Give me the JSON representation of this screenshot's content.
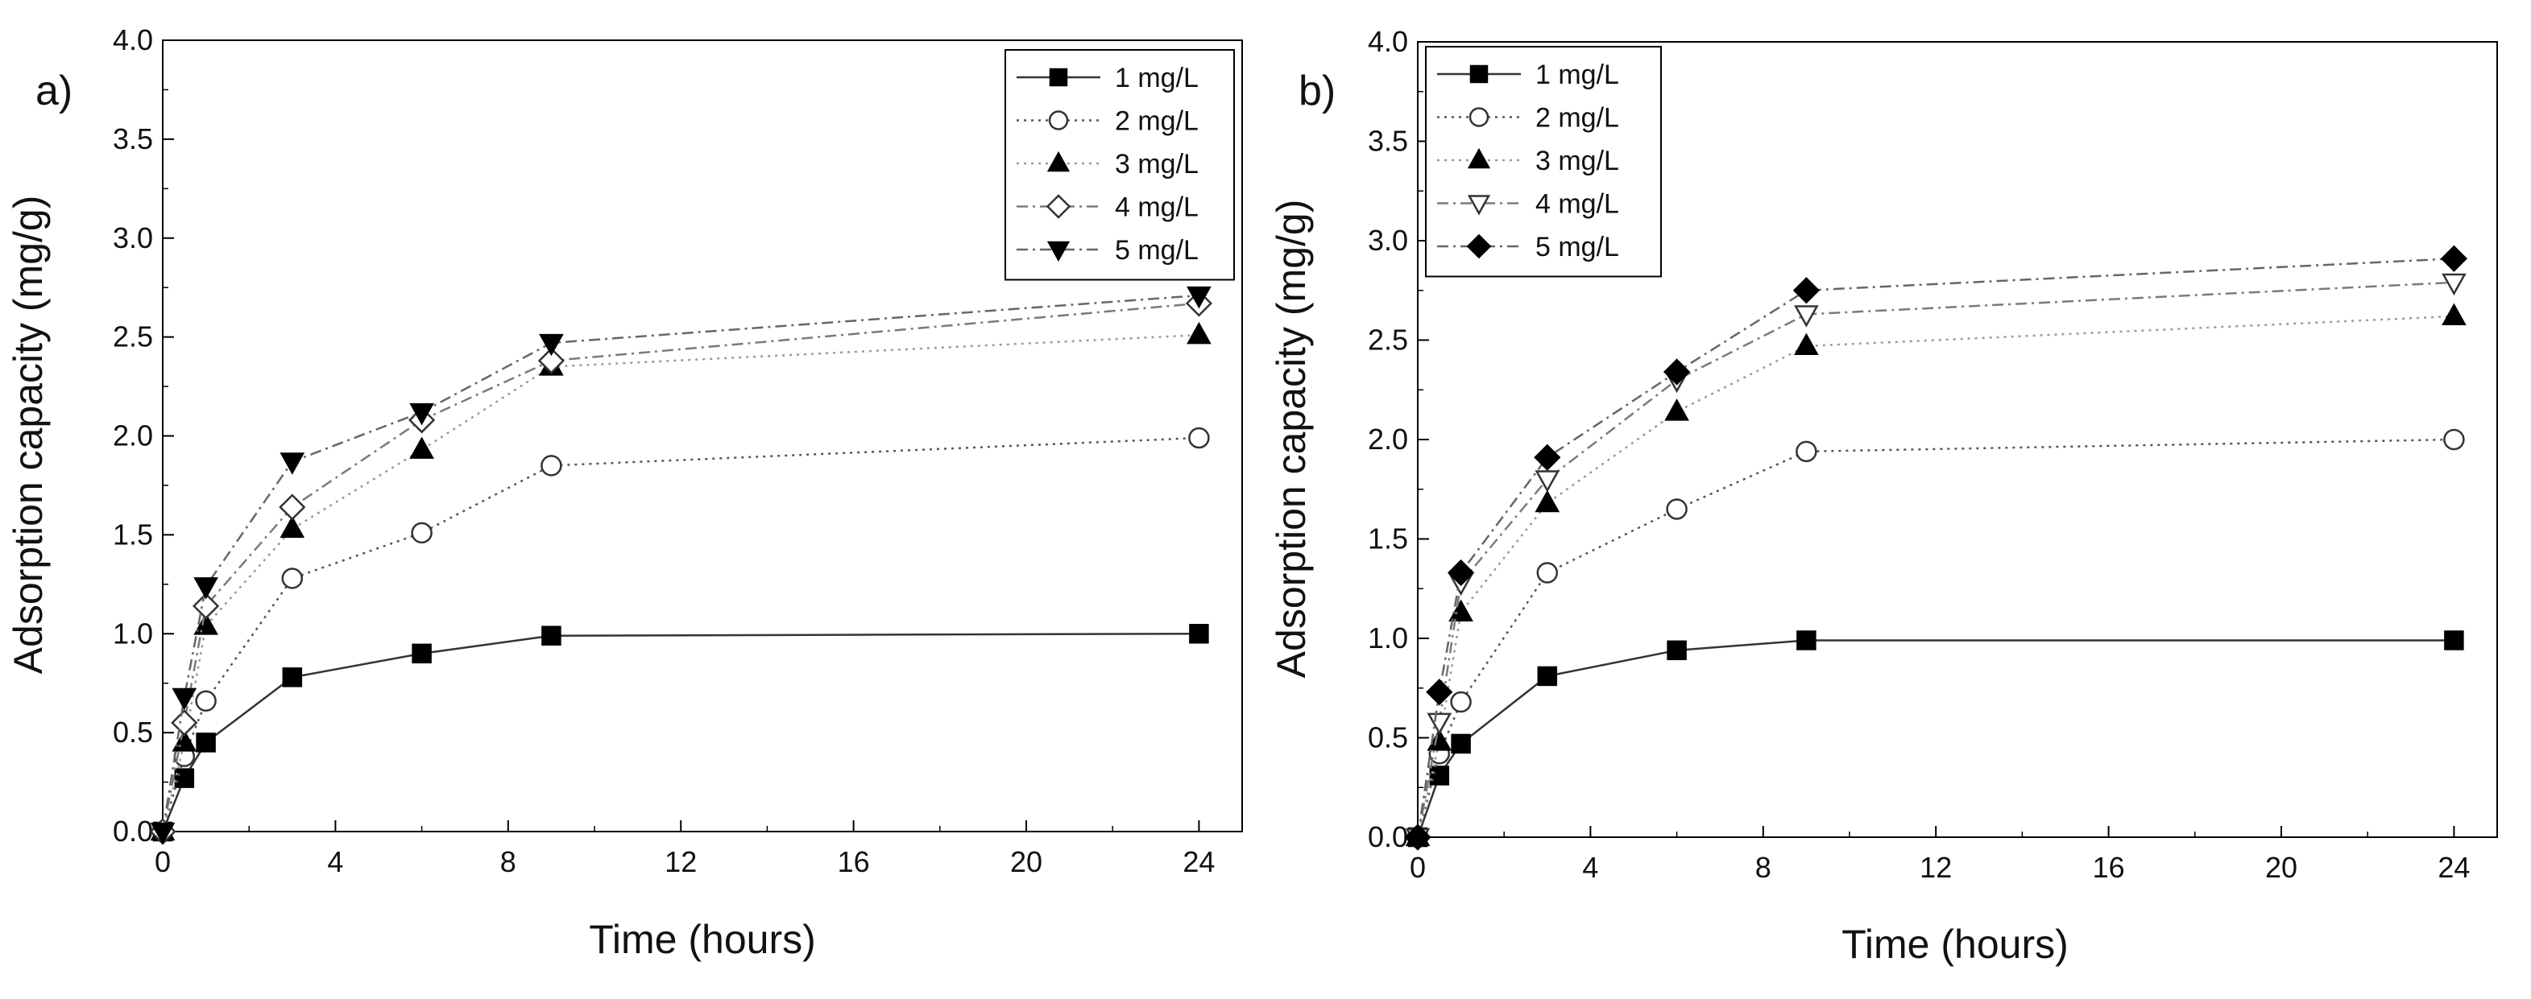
{
  "figure": {
    "panel_labels": [
      "a)",
      "b)"
    ]
  },
  "chart_data": [
    {
      "type": "line",
      "panel": "a)",
      "title": "",
      "xlabel": "Time (hours)",
      "ylabel": "Adsorption capacity (mg/g)",
      "xlim": [
        0,
        25
      ],
      "ylim": [
        0,
        4
      ],
      "xticks": [
        0,
        4,
        8,
        12,
        16,
        20,
        24
      ],
      "yticks": [
        0.0,
        0.5,
        1.0,
        1.5,
        2.0,
        2.5,
        3.0,
        3.5,
        4.0
      ],
      "xtick_labels": [
        "0",
        "4",
        "8",
        "12",
        "16",
        "20",
        "24"
      ],
      "ytick_labels": [
        "0.0",
        "0.5",
        "1.0",
        "1.5",
        "2.0",
        "2.5",
        "3.0",
        "3.5",
        "4.0"
      ],
      "legend_position": "top-right",
      "x": [
        0,
        0.5,
        1,
        3,
        6,
        9,
        24
      ],
      "series": [
        {
          "name": "1 mg/L",
          "marker": "square-filled",
          "dash": "solid",
          "color": "#333333",
          "values": [
            0,
            0.27,
            0.45,
            0.78,
            0.9,
            0.99,
            1.0
          ]
        },
        {
          "name": "2 mg/L",
          "marker": "circle-open",
          "dash": "dotted",
          "color": "#555555",
          "values": [
            0,
            0.38,
            0.66,
            1.28,
            1.51,
            1.85,
            1.99
          ]
        },
        {
          "name": "3 mg/L",
          "marker": "triangle-up-filled",
          "dash": "dotted",
          "color": "#9a9a9a",
          "values": [
            0,
            0.45,
            1.04,
            1.53,
            1.93,
            2.35,
            2.51
          ]
        },
        {
          "name": "4 mg/L",
          "marker": "diamond-open",
          "dash": "dashdot",
          "color": "#7a7a7a",
          "values": [
            0,
            0.55,
            1.14,
            1.64,
            2.08,
            2.38,
            2.67
          ]
        },
        {
          "name": "5 mg/L",
          "marker": "triangle-down-filled",
          "dash": "dashdot",
          "color": "#666666",
          "values": [
            0,
            0.68,
            1.24,
            1.87,
            2.12,
            2.47,
            2.71
          ]
        }
      ]
    },
    {
      "type": "line",
      "panel": "b)",
      "title": "",
      "xlabel": "Time (hours)",
      "ylabel": "Adsorption capacity (mg/g)",
      "xlim": [
        0,
        25
      ],
      "ylim": [
        0,
        4
      ],
      "xticks": [
        0,
        4,
        8,
        12,
        16,
        20,
        24
      ],
      "yticks": [
        0.0,
        0.5,
        1.0,
        1.5,
        2.0,
        2.5,
        3.0,
        3.5,
        4.0
      ],
      "xtick_labels": [
        "0",
        "4",
        "8",
        "12",
        "16",
        "20",
        "24"
      ],
      "ytick_labels": [
        "0.0",
        "0.5",
        "1.0",
        "1.5",
        "2.0",
        "2.5",
        "3.0",
        "3.5",
        "4.0"
      ],
      "legend_position": "top-left",
      "x": [
        0,
        0.5,
        1,
        3,
        6,
        9,
        24
      ],
      "series": [
        {
          "name": "1 mg/L",
          "marker": "square-filled",
          "dash": "solid",
          "color": "#333333",
          "values": [
            0,
            0.31,
            0.47,
            0.81,
            0.94,
            0.99,
            0.99
          ]
        },
        {
          "name": "2 mg/L",
          "marker": "circle-open",
          "dash": "dotted",
          "color": "#555555",
          "values": [
            0,
            0.42,
            0.68,
            1.33,
            1.65,
            1.94,
            2.0
          ]
        },
        {
          "name": "3 mg/L",
          "marker": "triangle-up-filled",
          "dash": "dotted",
          "color": "#9a9a9a",
          "values": [
            0,
            0.48,
            1.13,
            1.68,
            2.14,
            2.47,
            2.62
          ]
        },
        {
          "name": "4 mg/L",
          "marker": "triangle-down-open",
          "dash": "dashdot",
          "color": "#7a7a7a",
          "values": [
            0,
            0.58,
            1.28,
            1.8,
            2.3,
            2.63,
            2.79
          ]
        },
        {
          "name": "5 mg/L",
          "marker": "diamond-filled",
          "dash": "dashdot",
          "color": "#666666",
          "values": [
            0,
            0.73,
            1.33,
            1.91,
            2.34,
            2.75,
            2.91
          ]
        }
      ]
    }
  ]
}
